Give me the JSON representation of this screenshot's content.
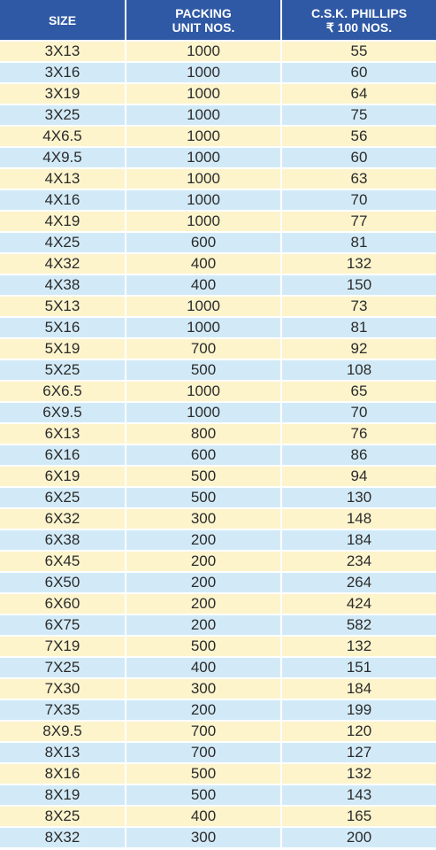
{
  "header": {
    "size": "SIZE",
    "packing_line1": "PACKING",
    "packing_line2": "UNIT NOS.",
    "price_line1": "C.S.K. PHILLIPS",
    "price_line2": "₹ 100 NOS."
  },
  "rows": [
    {
      "size": "3X13",
      "packing": "1000",
      "price": "55"
    },
    {
      "size": "3X16",
      "packing": "1000",
      "price": "60"
    },
    {
      "size": "3X19",
      "packing": "1000",
      "price": "64"
    },
    {
      "size": "3X25",
      "packing": "1000",
      "price": "75"
    },
    {
      "size": "4X6.5",
      "packing": "1000",
      "price": "56"
    },
    {
      "size": "4X9.5",
      "packing": "1000",
      "price": "60"
    },
    {
      "size": "4X13",
      "packing": "1000",
      "price": "63"
    },
    {
      "size": "4X16",
      "packing": "1000",
      "price": "70"
    },
    {
      "size": "4X19",
      "packing": "1000",
      "price": "77"
    },
    {
      "size": "4X25",
      "packing": "600",
      "price": "81"
    },
    {
      "size": "4X32",
      "packing": "400",
      "price": "132"
    },
    {
      "size": "4X38",
      "packing": "400",
      "price": "150"
    },
    {
      "size": "5X13",
      "packing": "1000",
      "price": "73"
    },
    {
      "size": "5X16",
      "packing": "1000",
      "price": "81"
    },
    {
      "size": "5X19",
      "packing": "700",
      "price": "92"
    },
    {
      "size": "5X25",
      "packing": "500",
      "price": "108"
    },
    {
      "size": "6X6.5",
      "packing": "1000",
      "price": "65"
    },
    {
      "size": "6X9.5",
      "packing": "1000",
      "price": "70"
    },
    {
      "size": "6X13",
      "packing": "800",
      "price": "76"
    },
    {
      "size": "6X16",
      "packing": "600",
      "price": "86"
    },
    {
      "size": "6X19",
      "packing": "500",
      "price": "94"
    },
    {
      "size": "6X25",
      "packing": "500",
      "price": "130"
    },
    {
      "size": "6X32",
      "packing": "300",
      "price": "148"
    },
    {
      "size": "6X38",
      "packing": "200",
      "price": "184"
    },
    {
      "size": "6X45",
      "packing": "200",
      "price": "234"
    },
    {
      "size": "6X50",
      "packing": "200",
      "price": "264"
    },
    {
      "size": "6X60",
      "packing": "200",
      "price": "424"
    },
    {
      "size": "6X75",
      "packing": "200",
      "price": "582"
    },
    {
      "size": "7X19",
      "packing": "500",
      "price": "132"
    },
    {
      "size": "7X25",
      "packing": "400",
      "price": "151"
    },
    {
      "size": "7X30",
      "packing": "300",
      "price": "184"
    },
    {
      "size": "7X35",
      "packing": "200",
      "price": "199"
    },
    {
      "size": "8X9.5",
      "packing": "700",
      "price": "120"
    },
    {
      "size": "8X13",
      "packing": "700",
      "price": "127"
    },
    {
      "size": "8X16",
      "packing": "500",
      "price": "132"
    },
    {
      "size": "8X19",
      "packing": "500",
      "price": "143"
    },
    {
      "size": "8X25",
      "packing": "400",
      "price": "165"
    },
    {
      "size": "8X32",
      "packing": "300",
      "price": "200"
    }
  ],
  "colors": {
    "header_bg": "#2f59a4",
    "row_odd": "#fdf4cc",
    "row_even": "#d2eaf7"
  }
}
